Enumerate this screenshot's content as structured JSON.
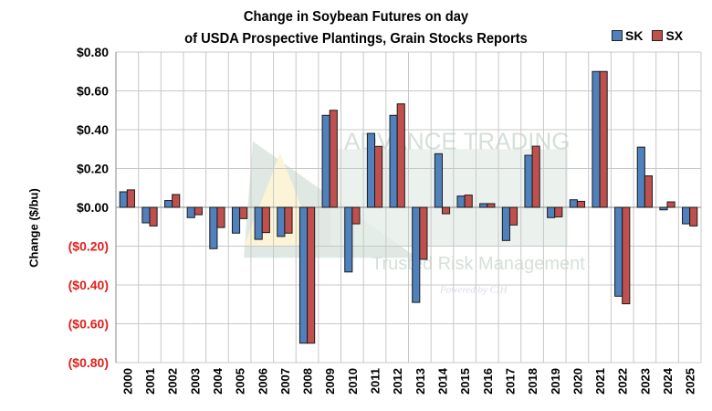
{
  "chart_data": {
    "type": "bar",
    "title_line1": "Change in Soybean Futures on day",
    "title_line2": "of USDA Prospective Plantings, Grain Stocks Reports",
    "xlabel": "",
    "ylabel": "Change ($/bu)",
    "ylim": [
      -0.8,
      0.8
    ],
    "yticks": [
      0.8,
      0.6,
      0.4,
      0.2,
      0.0,
      -0.2,
      -0.4,
      -0.6,
      -0.8
    ],
    "ytick_labels": [
      "$0.80",
      "$0.60",
      "$0.40",
      "$0.20",
      "$0.00",
      "($0.20)",
      "($0.40)",
      "($0.60)",
      "($0.80)"
    ],
    "grid": true,
    "legend_position": "top-right",
    "categories": [
      "2000",
      "2001",
      "2002",
      "2003",
      "2004",
      "2005",
      "2006",
      "2007",
      "2008",
      "2009",
      "2010",
      "2011",
      "2012",
      "2013",
      "2014",
      "2015",
      "2016",
      "2017",
      "2018",
      "2019",
      "2020",
      "2021",
      "2022",
      "2023",
      "2024",
      "2025"
    ],
    "series": [
      {
        "name": "SK",
        "color": "#4F81BD",
        "values": [
          0.08,
          -0.08,
          0.035,
          -0.053,
          -0.213,
          -0.133,
          -0.165,
          -0.15,
          -0.7,
          0.474,
          -0.333,
          0.381,
          0.474,
          -0.49,
          0.276,
          0.058,
          0.019,
          -0.171,
          0.268,
          -0.053,
          0.039,
          0.7,
          -0.458,
          0.31,
          -0.013,
          -0.085
        ]
      },
      {
        "name": "SX",
        "color": "#C0504D",
        "values": [
          0.09,
          -0.096,
          0.066,
          -0.038,
          -0.104,
          -0.058,
          -0.13,
          -0.133,
          -0.7,
          0.5,
          -0.085,
          0.314,
          0.533,
          -0.268,
          -0.033,
          0.063,
          0.019,
          -0.091,
          0.315,
          -0.049,
          0.031,
          0.7,
          -0.497,
          0.162,
          0.028,
          -0.096
        ]
      }
    ],
    "colors": {
      "positive_tick": "#000000",
      "negative_tick": "#E0201B",
      "grid": "#C8C8C8"
    }
  },
  "watermark": {
    "line1": "ADVANCE TRADING",
    "line2": "Trusted Risk Management",
    "line3": "Powered by CIH"
  }
}
